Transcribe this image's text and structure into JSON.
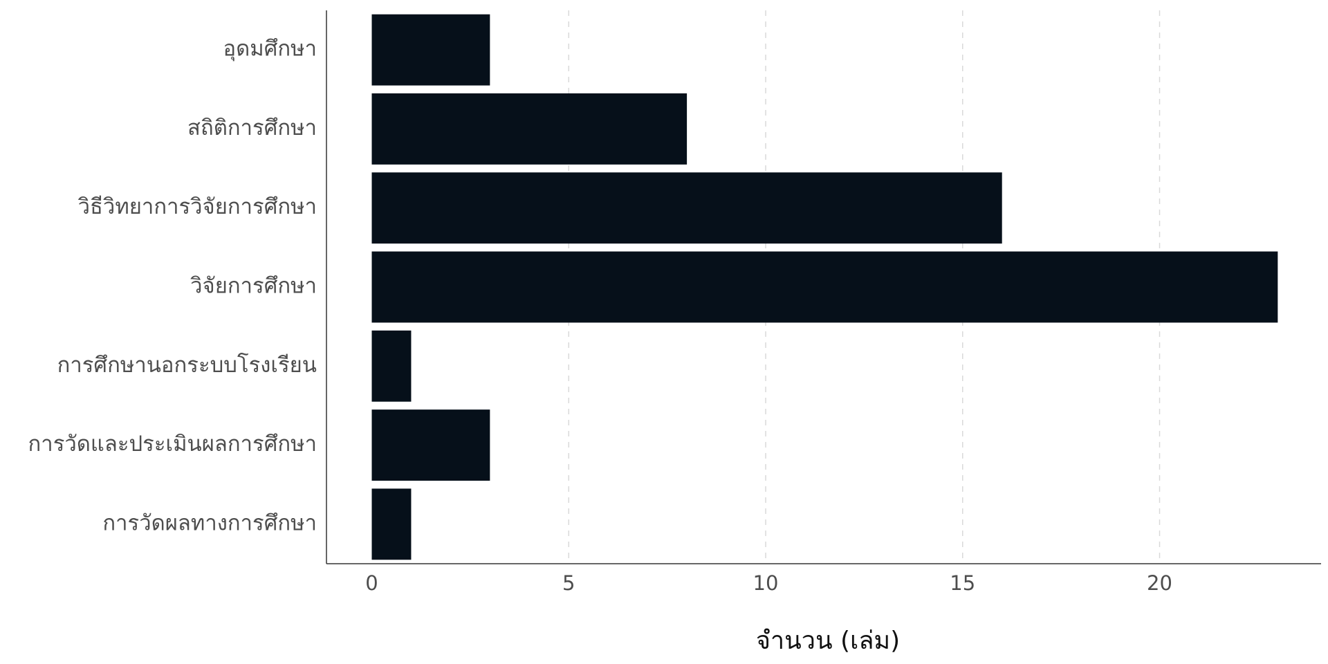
{
  "chart_data": {
    "type": "bar",
    "orientation": "horizontal",
    "categories": [
      "อุดมศึกษา",
      "สถิติการศึกษา",
      "วิธีวิทยาการวิจัยการศึกษา",
      "วิจัยการศึกษา",
      "การศึกษานอกระบบโรงเรียน",
      "การวัดและประเมินผลการศึกษา",
      "การวัดผลทางการศึกษา"
    ],
    "values": [
      3,
      8,
      16,
      23,
      1,
      3,
      1
    ],
    "xlabel": "จำนวน (เล่ม)",
    "ylabel": "",
    "xlim": [
      -1.15,
      24.1
    ],
    "xticks": [
      0,
      5,
      10,
      15,
      20
    ],
    "xtick_labels": [
      "0",
      "5",
      "10",
      "15",
      "20"
    ],
    "grid": "vertical dashed major lines",
    "legend": "none",
    "bar_color": "#06101a"
  }
}
